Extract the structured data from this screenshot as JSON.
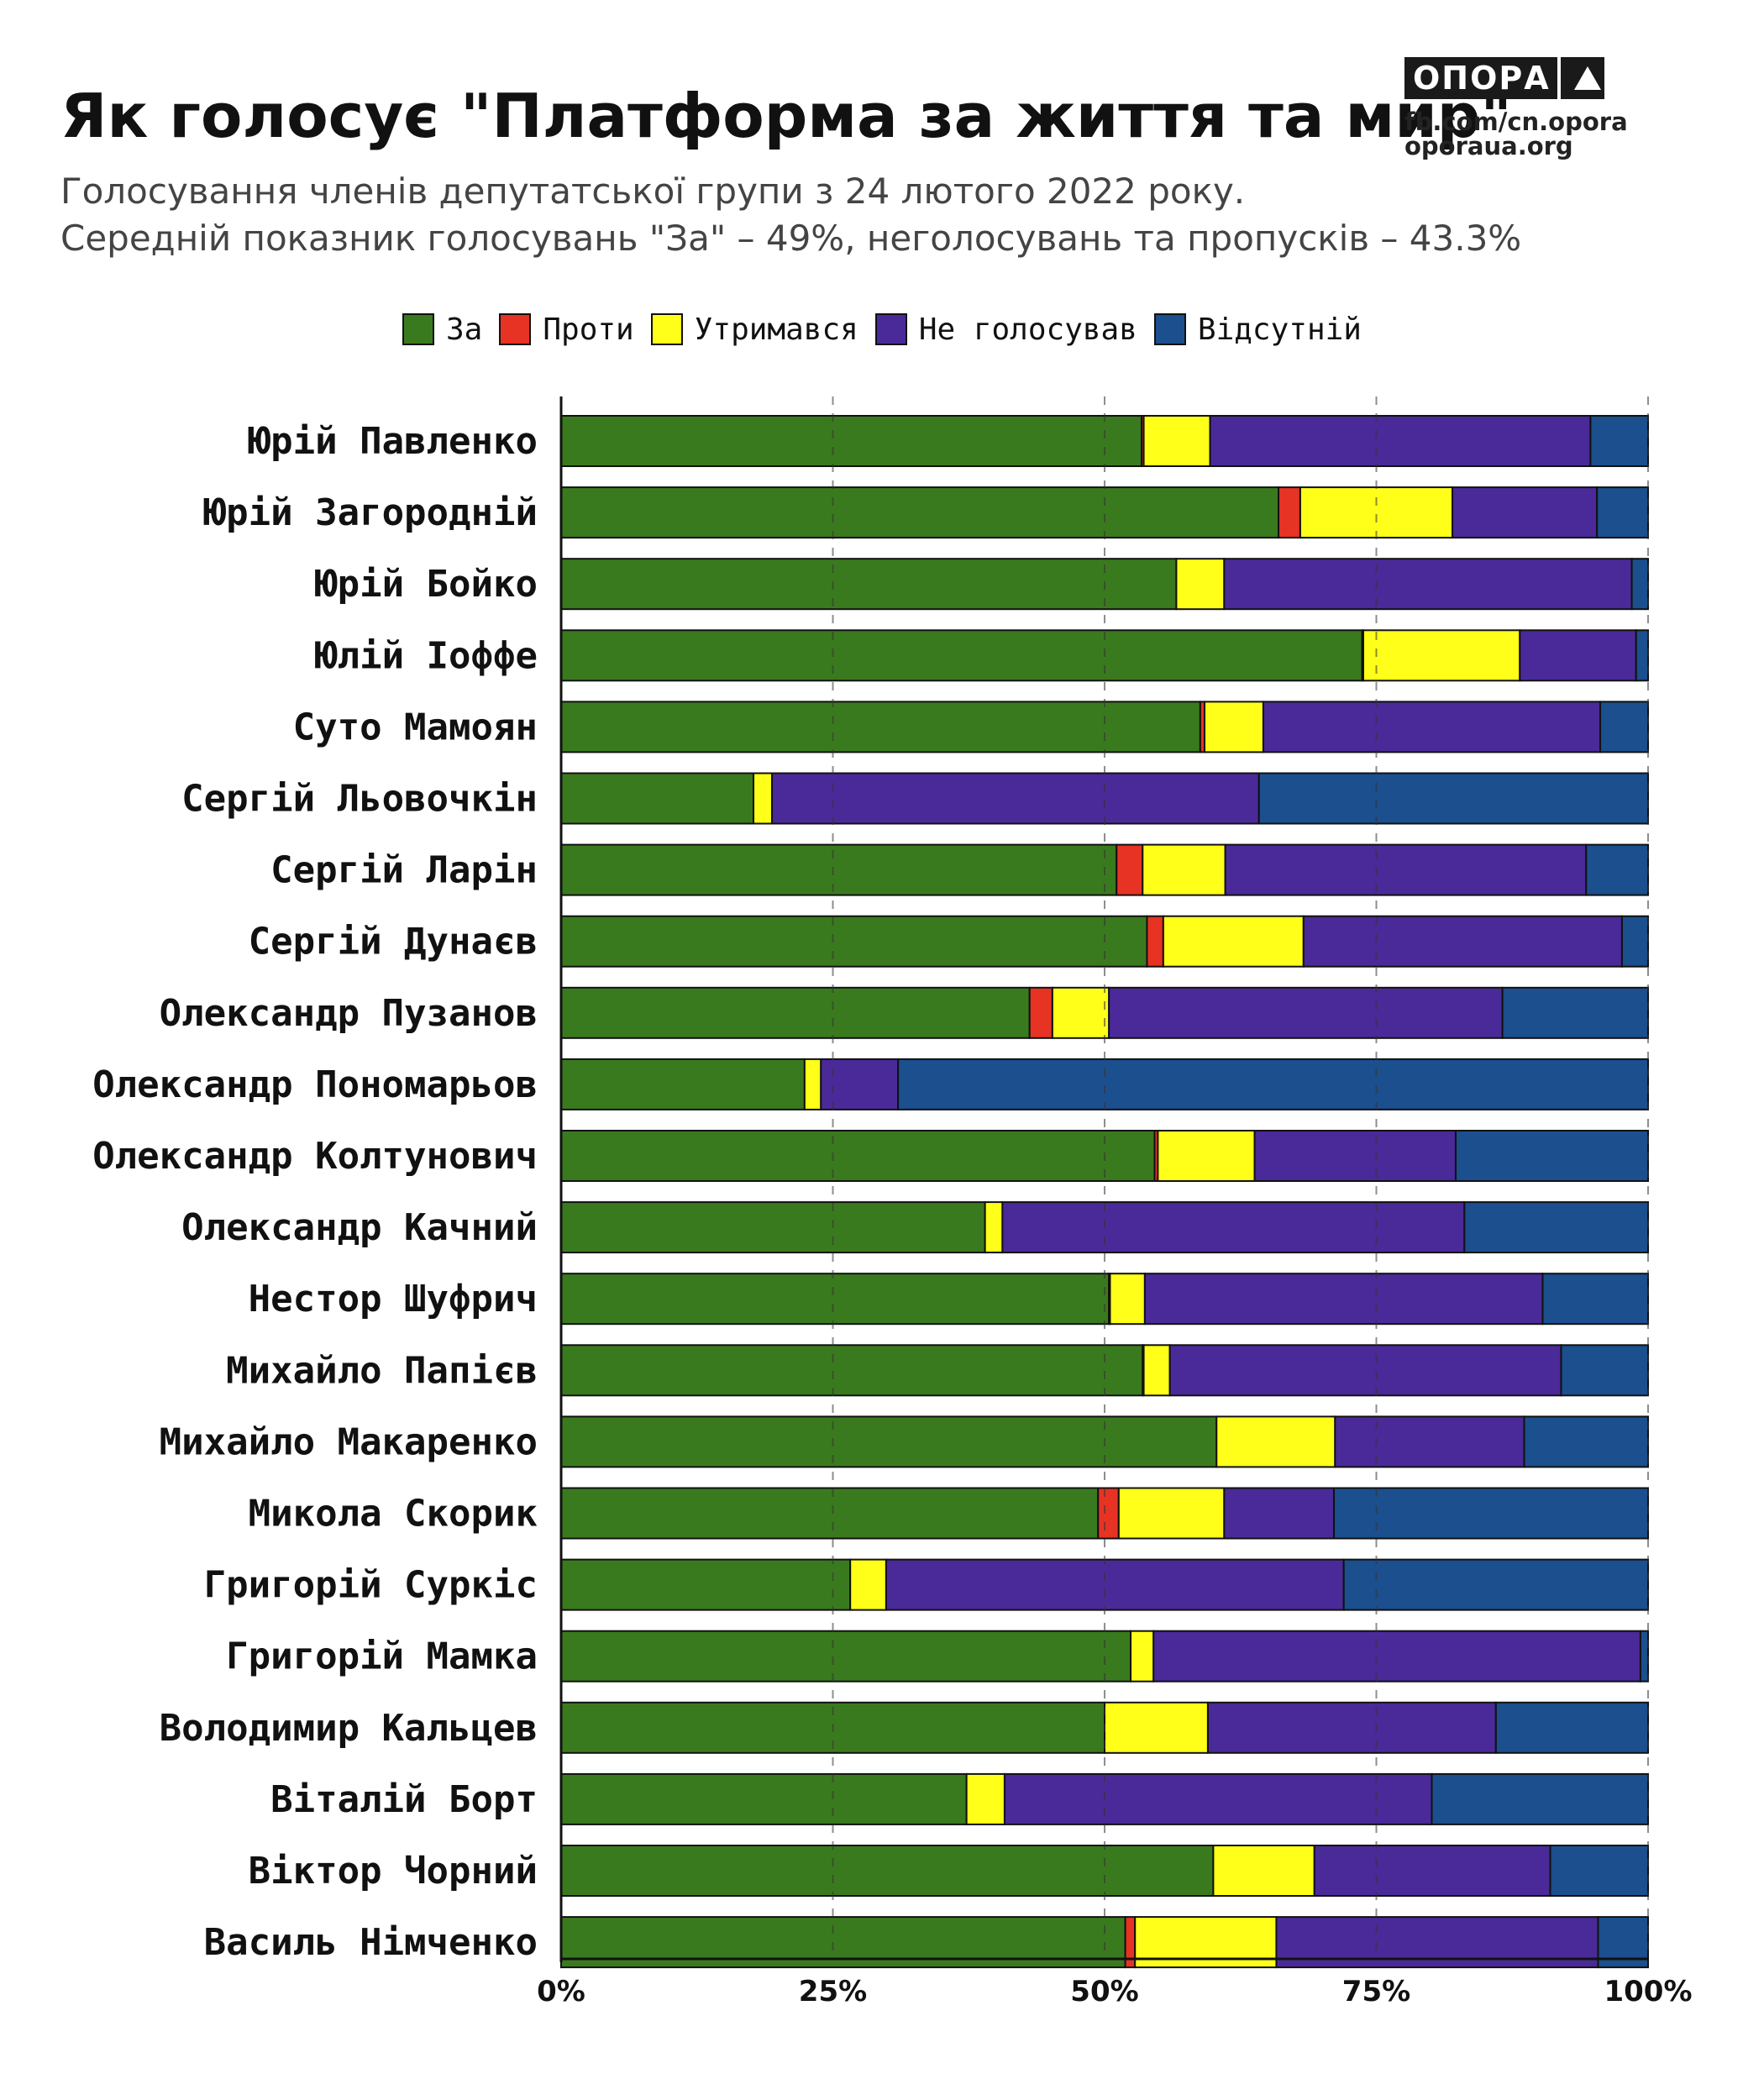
{
  "header": {
    "title": "Як голосує \"Платформа за життя та мир\"",
    "subtitle_line1": "Голосування членів депутатської групи з 24 лютого 2022 року.",
    "subtitle_line2": "Середній показник голосувань \"За\" – 49%, неголосувань та пропусків – 43.3%"
  },
  "brand": {
    "logo_text": "ОПОРА",
    "link1": "fb.com/cn.opora",
    "link2": "oporaua.org"
  },
  "chart_data": {
    "type": "bar",
    "orientation": "horizontal",
    "stacked": true,
    "legend_position": "top-center",
    "xlim": [
      0,
      100
    ],
    "x_ticks": [
      "0%",
      "25%",
      "50%",
      "75%",
      "100%"
    ],
    "x_tick_values": [
      0,
      25,
      50,
      75,
      100
    ],
    "grid": "vertical dashed",
    "categories": [
      "Юрій Павленко",
      "Юрій Загородній",
      "Юрій Бойко",
      "Юлій Іоффе",
      "Суто Мамоян",
      "Сергій Льовочкін",
      "Сергій Ларін",
      "Сергій Дунаєв",
      "Олександр Пузанов",
      "Олександр Пономарьов",
      "Олександр Колтунович",
      "Олександр Качний",
      "Нестор Шуфрич",
      "Михайло Папієв",
      "Михайло Макаренко",
      "Микола Скорик",
      "Григорій Суркіс",
      "Григорій Мамка",
      "Володимир Кальцев",
      "Віталій Борт",
      "Віктор Чорний",
      "Василь Німченко"
    ],
    "series": [
      {
        "name": "За",
        "color": "#3a7a1e",
        "values": [
          53.4,
          66.0,
          56.6,
          73.7,
          58.8,
          17.7,
          51.1,
          53.9,
          43.1,
          22.4,
          54.6,
          39.0,
          50.4,
          53.5,
          60.3,
          49.4,
          26.6,
          52.4,
          50.0,
          37.3,
          60.0,
          51.9
        ]
      },
      {
        "name": "Проти",
        "color": "#e63323",
        "values": [
          0.2,
          2.0,
          0.0,
          0.1,
          0.4,
          0.0,
          2.4,
          1.5,
          2.1,
          0.0,
          0.3,
          0.0,
          0.1,
          0.1,
          0.0,
          1.9,
          0.0,
          0.0,
          0.0,
          0.0,
          0.0,
          0.9
        ]
      },
      {
        "name": "Утримався",
        "color": "#ffff1a",
        "values": [
          6.1,
          14.0,
          4.4,
          14.4,
          5.4,
          1.7,
          7.6,
          12.9,
          5.2,
          1.5,
          8.9,
          1.6,
          3.2,
          2.4,
          10.9,
          9.7,
          3.3,
          2.1,
          9.5,
          3.5,
          9.3,
          13.0
        ]
      },
      {
        "name": "Не голосував",
        "color": "#4a2a98",
        "values": [
          35.0,
          13.3,
          37.5,
          10.7,
          31.0,
          44.8,
          33.2,
          29.3,
          36.2,
          7.1,
          18.5,
          42.5,
          36.6,
          36.0,
          17.4,
          10.1,
          42.1,
          44.8,
          26.5,
          39.3,
          21.7,
          29.6
        ]
      },
      {
        "name": "Відсутній",
        "color": "#1b4f8e",
        "values": [
          5.3,
          4.7,
          1.5,
          1.1,
          4.4,
          35.8,
          5.7,
          2.4,
          13.4,
          69.0,
          17.7,
          16.9,
          9.7,
          8.0,
          11.4,
          28.9,
          28.0,
          0.7,
          14.0,
          19.9,
          9.0,
          4.6
        ]
      }
    ]
  }
}
